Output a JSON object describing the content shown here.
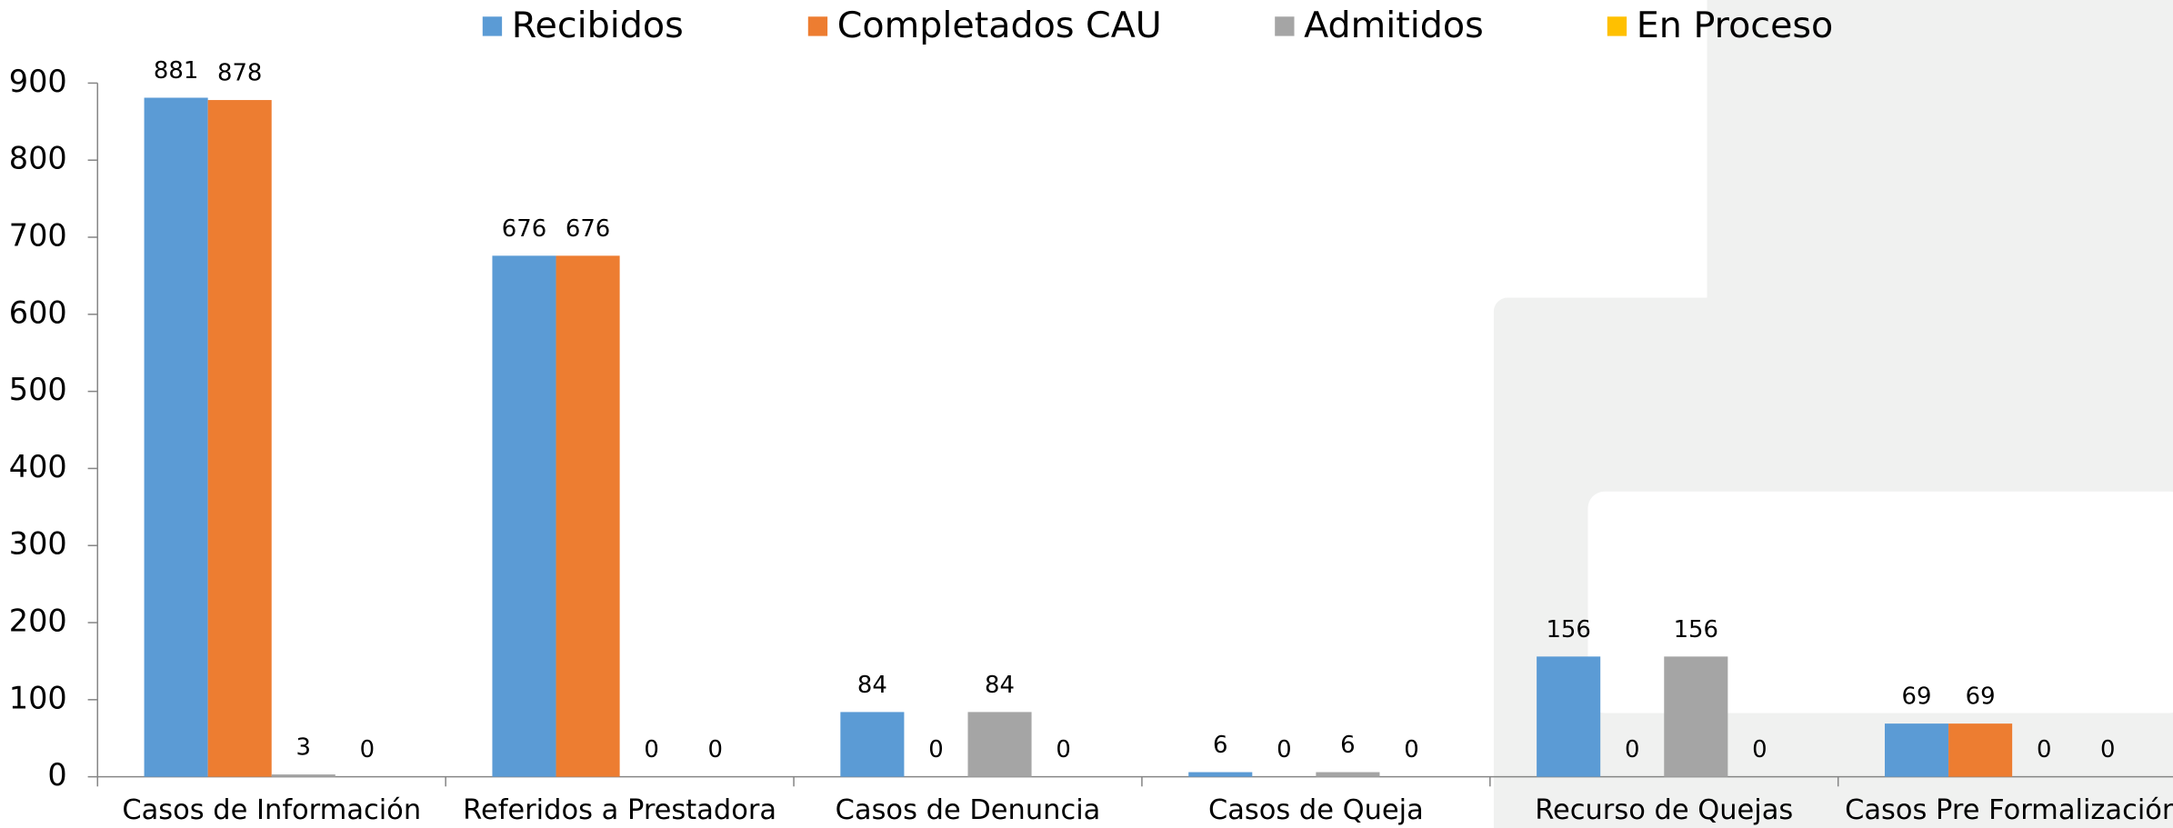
{
  "chart_data": {
    "type": "bar",
    "categories": [
      "Casos de Información",
      "Referidos a Prestadora",
      "Casos de Denuncia",
      "Casos de Queja",
      "Recurso de Quejas",
      "Casos Pre Formalización"
    ],
    "series": [
      {
        "name": "Recibidos",
        "color": "#5b9bd5",
        "values": [
          881,
          676,
          84,
          6,
          156,
          69
        ]
      },
      {
        "name": "Completados CAU",
        "color": "#ed7d31",
        "values": [
          878,
          676,
          0,
          0,
          0,
          69
        ]
      },
      {
        "name": "Admitidos",
        "color": "#a5a5a5",
        "values": [
          3,
          0,
          84,
          6,
          156,
          0
        ]
      },
      {
        "name": "En Proceso",
        "color": "#ffc000",
        "values": [
          0,
          0,
          0,
          0,
          0,
          0
        ]
      }
    ],
    "ylim": [
      0,
      900
    ],
    "yticks": [
      0,
      100,
      200,
      300,
      400,
      500,
      600,
      700,
      800,
      900
    ],
    "legend": "top",
    "data_labels": true
  }
}
